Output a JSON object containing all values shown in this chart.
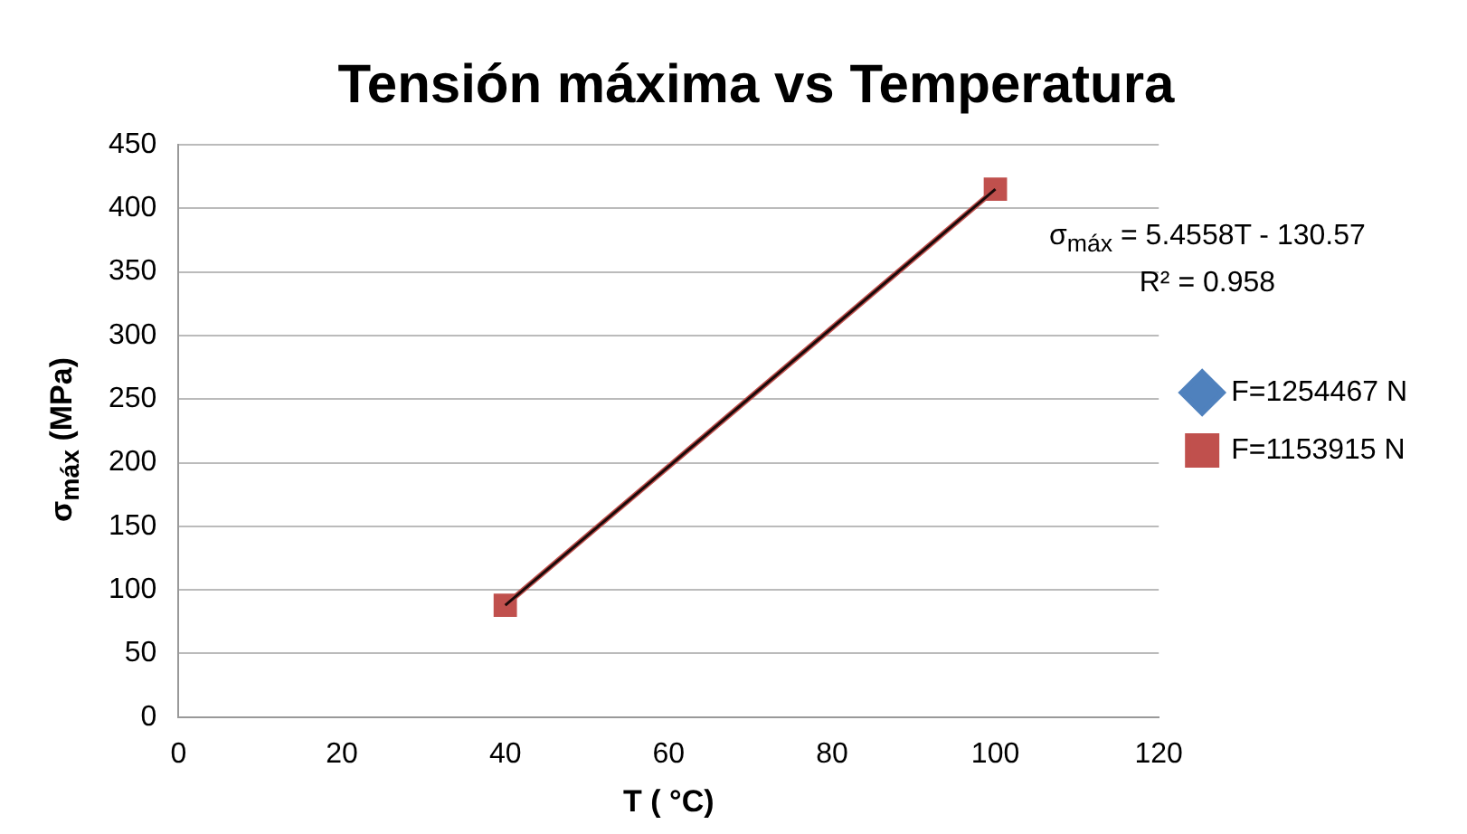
{
  "chart_data": {
    "type": "line",
    "title": "Tensión máxima vs Temperatura",
    "xlabel": "T ( °C)",
    "ylabel": "σ$_{máx}$ (MPa)",
    "x": [
      40,
      100
    ],
    "series": [
      {
        "name": "F=1254467 N",
        "color": "#4f81bd",
        "values": [
          null,
          null
        ],
        "marker": "diamond"
      },
      {
        "name": "F=1153915 N",
        "color": "#c0504d",
        "values": [
          88,
          415
        ],
        "marker": "square"
      },
      {
        "type": "line",
        "color": "#1a0a0a",
        "x": [
          40,
          100
        ],
        "values": [
          88,
          415
        ],
        "marker": "none"
      }
    ],
    "xlim": [
      0,
      120
    ],
    "xticks": [
      0,
      20,
      40,
      60,
      80,
      100,
      120
    ],
    "ylim": [
      0,
      450
    ],
    "yticks": [
      0,
      50,
      100,
      150,
      200,
      250,
      300,
      350,
      400,
      450
    ],
    "grid": "y",
    "legend": "right",
    "annotations": [
      "σ$_{máx}$ = 5.4558T - 130.57",
      "R² = 0.958"
    ]
  }
}
